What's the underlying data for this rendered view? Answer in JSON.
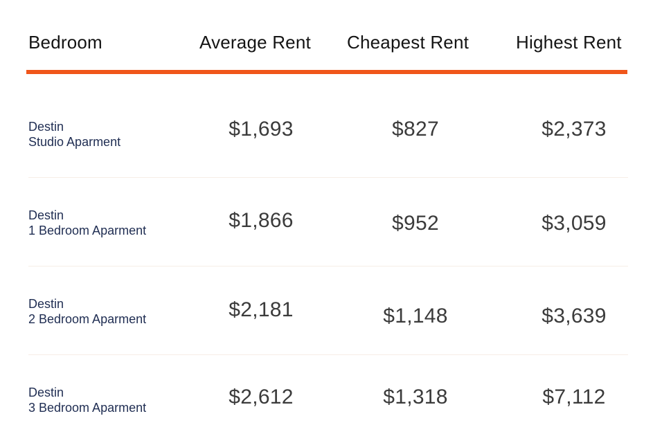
{
  "colors": {
    "accent_rule": "#f0561a",
    "label_text": "#1f2d52",
    "value_text": "#3b3b3b",
    "header_text": "#141414",
    "row_separator": "#f6ede6"
  },
  "chart_data": {
    "type": "table",
    "columns": [
      "Bedroom",
      "Average Rent",
      "Cheapest Rent",
      "Highest Rent"
    ],
    "rows": [
      {
        "city": "Destin",
        "type": "Studio Aparment",
        "average": "$1,693",
        "cheapest": "$827",
        "highest": "$2,373"
      },
      {
        "city": "Destin",
        "type": "1 Bedroom Aparment",
        "average": "$1,866",
        "cheapest": "$952",
        "highest": "$3,059"
      },
      {
        "city": "Destin",
        "type": "2 Bedroom Aparment",
        "average": "$2,181",
        "cheapest": "$1,148",
        "highest": "$3,639"
      },
      {
        "city": "Destin",
        "type": "3 Bedroom Aparment",
        "average": "$2,612",
        "cheapest": "$1,318",
        "highest": "$7,112"
      }
    ]
  }
}
